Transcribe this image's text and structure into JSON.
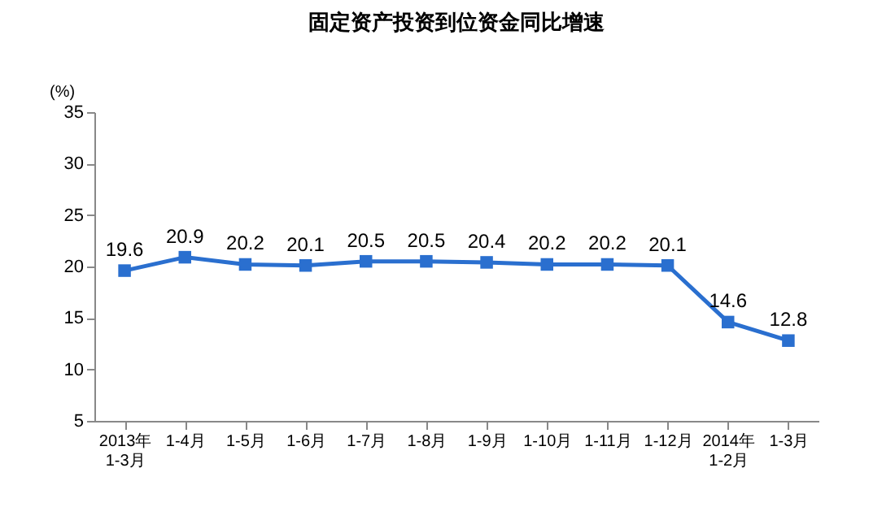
{
  "chart_data": {
    "type": "line",
    "title": "固定资产投资到位资金同比增速",
    "ylabel": "(%)",
    "categories": [
      "2013年\n1-3月",
      "1-4月",
      "1-5月",
      "1-6月",
      "1-7月",
      "1-8月",
      "1-9月",
      "1-10月",
      "1-11月",
      "1-12月",
      "2014年\n1-2月",
      "1-3月"
    ],
    "values": [
      19.6,
      20.9,
      20.2,
      20.1,
      20.5,
      20.5,
      20.4,
      20.2,
      20.2,
      20.1,
      14.6,
      12.8
    ],
    "color": "#2a6fcf",
    "ylim": [
      5,
      35
    ],
    "yticks": [
      5,
      10,
      15,
      20,
      25,
      30,
      35
    ],
    "grid": false,
    "marker": "square",
    "line_style": "solid",
    "data_labels": true
  }
}
